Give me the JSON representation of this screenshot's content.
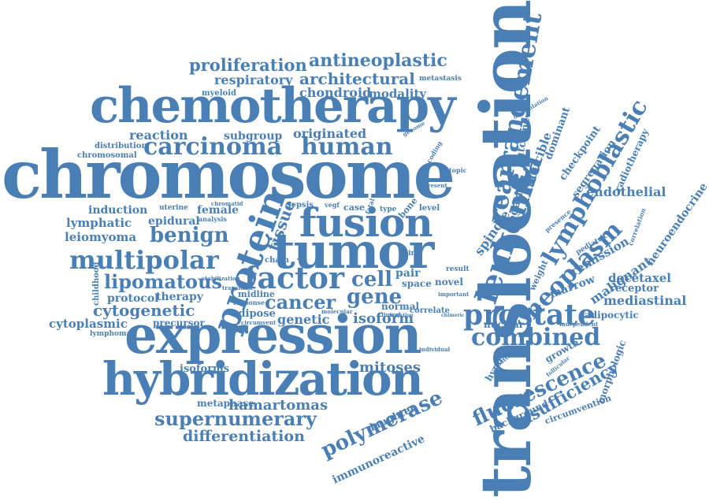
{
  "word_color": "#4a7fb5",
  "words": [
    {
      "id": "translocation",
      "text": "translocation"
    },
    {
      "id": "chromosome",
      "text": "chromosome"
    },
    {
      "id": "chemotherapy",
      "text": "chemotherapy"
    },
    {
      "id": "expression",
      "text": "expression"
    },
    {
      "id": "hybridization",
      "text": "hybridization"
    },
    {
      "id": "tumor",
      "text": "tumor"
    },
    {
      "id": "fusion",
      "text": "fusion"
    },
    {
      "id": "protein",
      "text": "protein"
    },
    {
      "id": "leukemia",
      "text": "leukemia"
    },
    {
      "id": "rearrangement",
      "text": "rearrangement"
    },
    {
      "id": "lymphoblastic",
      "text": "lymphoblastic"
    },
    {
      "id": "neoplasm",
      "text": "neoplasm"
    },
    {
      "id": "prostate",
      "text": "prostate"
    },
    {
      "id": "combined",
      "text": "combined"
    },
    {
      "id": "fluorescence",
      "text": "fluorescence"
    },
    {
      "id": "polymerase",
      "text": "polymerase"
    },
    {
      "id": "multipolar",
      "text": "multipolar"
    },
    {
      "id": "factor",
      "text": "factor"
    },
    {
      "id": "carcinoma",
      "text": "carcinoma"
    },
    {
      "id": "human",
      "text": "human"
    },
    {
      "id": "benign",
      "text": "benign"
    },
    {
      "id": "cancer",
      "text": "cancer"
    },
    {
      "id": "gene",
      "text": "gene"
    },
    {
      "id": "cell",
      "text": "cell"
    },
    {
      "id": "isoform",
      "text": "isoform"
    },
    {
      "id": "lipomatous",
      "text": "lipomatous"
    },
    {
      "id": "cytogenetic",
      "text": "cytogenetic"
    },
    {
      "id": "supernumerary",
      "text": "supernumerary"
    },
    {
      "id": "differentiation",
      "text": "differentiation"
    },
    {
      "id": "hamartomas",
      "text": "hamartomas"
    },
    {
      "id": "isoforms",
      "text": "isoforms"
    },
    {
      "id": "mitoses",
      "text": "mitoses"
    },
    {
      "id": "proliferation",
      "text": "proliferation"
    },
    {
      "id": "antineoplastic",
      "text": "antineoplastic"
    },
    {
      "id": "architectural",
      "text": "architectural"
    },
    {
      "id": "respiratory",
      "text": "respiratory"
    },
    {
      "id": "chondroid",
      "text": "chondroid"
    },
    {
      "id": "modality",
      "text": "modality"
    },
    {
      "id": "metastasis",
      "text": "metastasis"
    },
    {
      "id": "myeloid",
      "text": "myeloid"
    },
    {
      "id": "reaction",
      "text": "reaction"
    },
    {
      "id": "subgroup",
      "text": "subgroup"
    },
    {
      "id": "originated",
      "text": "originated"
    },
    {
      "id": "distribution",
      "text": "distribution"
    },
    {
      "id": "chromosomal",
      "text": "chromosomal"
    },
    {
      "id": "induction",
      "text": "induction"
    },
    {
      "id": "female",
      "text": "female"
    },
    {
      "id": "lymphatic",
      "text": "lymphatic"
    },
    {
      "id": "epidural",
      "text": "epidural"
    },
    {
      "id": "leiomyoma",
      "text": "leiomyoma"
    },
    {
      "id": "tissue",
      "text": "tissue"
    },
    {
      "id": "uterine",
      "text": "uterine"
    },
    {
      "id": "analysis",
      "text": "analysis"
    },
    {
      "id": "chromatid",
      "text": "chromatid"
    },
    {
      "id": "protocol",
      "text": "protocol"
    },
    {
      "id": "therapy",
      "text": "therapy"
    },
    {
      "id": "cytoplasmic",
      "text": "cytoplasmic"
    },
    {
      "id": "precursor",
      "text": "precursor"
    },
    {
      "id": "lymphoma",
      "text": "lymphoma"
    },
    {
      "id": "metaphase",
      "text": "metaphase"
    },
    {
      "id": "genetic",
      "text": "genetic"
    },
    {
      "id": "adipose",
      "text": "adipose"
    },
    {
      "id": "midline",
      "text": "midline"
    },
    {
      "id": "response",
      "text": "response"
    },
    {
      "id": "circumvent",
      "text": "circumvent"
    },
    {
      "id": "transition",
      "text": "transition"
    },
    {
      "id": "stabilization",
      "text": "stabilization"
    },
    {
      "id": "childhood",
      "text": "childhood"
    },
    {
      "id": "sepsis",
      "text": "sepsis"
    },
    {
      "id": "case",
      "text": "case"
    },
    {
      "id": "type",
      "text": "type"
    },
    {
      "id": "bone",
      "text": "bone"
    },
    {
      "id": "level",
      "text": "level"
    },
    {
      "id": "vegf",
      "text": "vegf"
    },
    {
      "id": "fatal",
      "text": "fatal"
    },
    {
      "id": "chain",
      "text": "chain"
    },
    {
      "id": "loss",
      "text": "loss"
    },
    {
      "id": "pair",
      "text": "pair"
    },
    {
      "id": "space",
      "text": "space"
    },
    {
      "id": "novel",
      "text": "novel"
    },
    {
      "id": "normal",
      "text": "normal"
    },
    {
      "id": "correlate",
      "text": "correlate"
    },
    {
      "id": "molecular",
      "text": "molecular"
    },
    {
      "id": "clinical",
      "text": "clinical"
    },
    {
      "id": "mutation",
      "text": "mutation"
    },
    {
      "id": "chimeric",
      "text": "chimeric"
    },
    {
      "id": "pain",
      "text": "pain"
    },
    {
      "id": "result",
      "text": "result"
    },
    {
      "id": "important",
      "text": "important"
    },
    {
      "id": "individual",
      "text": "individual"
    },
    {
      "id": "daughter",
      "text": "daughter"
    },
    {
      "id": "immunoreactive",
      "text": "immunoreactive"
    },
    {
      "id": "present",
      "text": "present"
    },
    {
      "id": "ectopic",
      "text": "ectopic"
    },
    {
      "id": "coding",
      "text": "coding"
    },
    {
      "id": "genome",
      "text": "genome"
    },
    {
      "id": "spindle",
      "text": "spindle"
    },
    {
      "id": "negative",
      "text": "negative"
    },
    {
      "id": "outcome",
      "text": "outcome"
    },
    {
      "id": "inducible",
      "text": "inducible"
    },
    {
      "id": "dominant",
      "text": "dominant"
    },
    {
      "id": "checkpoint",
      "text": "checkpoint"
    },
    {
      "id": "segregation",
      "text": "segregation"
    },
    {
      "id": "radiotherapy",
      "text": "radiotherapy"
    },
    {
      "id": "deregulation",
      "text": "deregulation"
    },
    {
      "id": "endothelial",
      "text": "endothelial"
    },
    {
      "id": "neuroendocrine",
      "text": "neuroendocrine"
    },
    {
      "id": "remission",
      "text": "remission"
    },
    {
      "id": "pediatric",
      "text": "pediatric"
    },
    {
      "id": "presence",
      "text": "presence"
    },
    {
      "id": "marrow",
      "text": "marrow"
    },
    {
      "id": "malignant",
      "text": "malignant"
    },
    {
      "id": "docetaxel",
      "text": "docetaxel"
    },
    {
      "id": "receptor",
      "text": "receptor"
    },
    {
      "id": "mediastinal",
      "text": "mediastinal"
    },
    {
      "id": "adipocytic",
      "text": "adipocytic"
    },
    {
      "id": "correlation",
      "text": "correlation"
    },
    {
      "id": "weight",
      "text": "weight"
    },
    {
      "id": "nuclear",
      "text": "nuclear"
    },
    {
      "id": "independent",
      "text": "independent"
    },
    {
      "id": "hypoxia",
      "text": "hypoxia"
    },
    {
      "id": "growth",
      "text": "growth"
    },
    {
      "id": "follicular",
      "text": "follicular"
    },
    {
      "id": "positive",
      "text": "positive"
    },
    {
      "id": "background",
      "text": "background"
    },
    {
      "id": "insufficiency",
      "text": "insufficiency"
    },
    {
      "id": "circumvention",
      "text": "circumvention"
    },
    {
      "id": "morphologic",
      "text": "morphologic"
    }
  ]
}
